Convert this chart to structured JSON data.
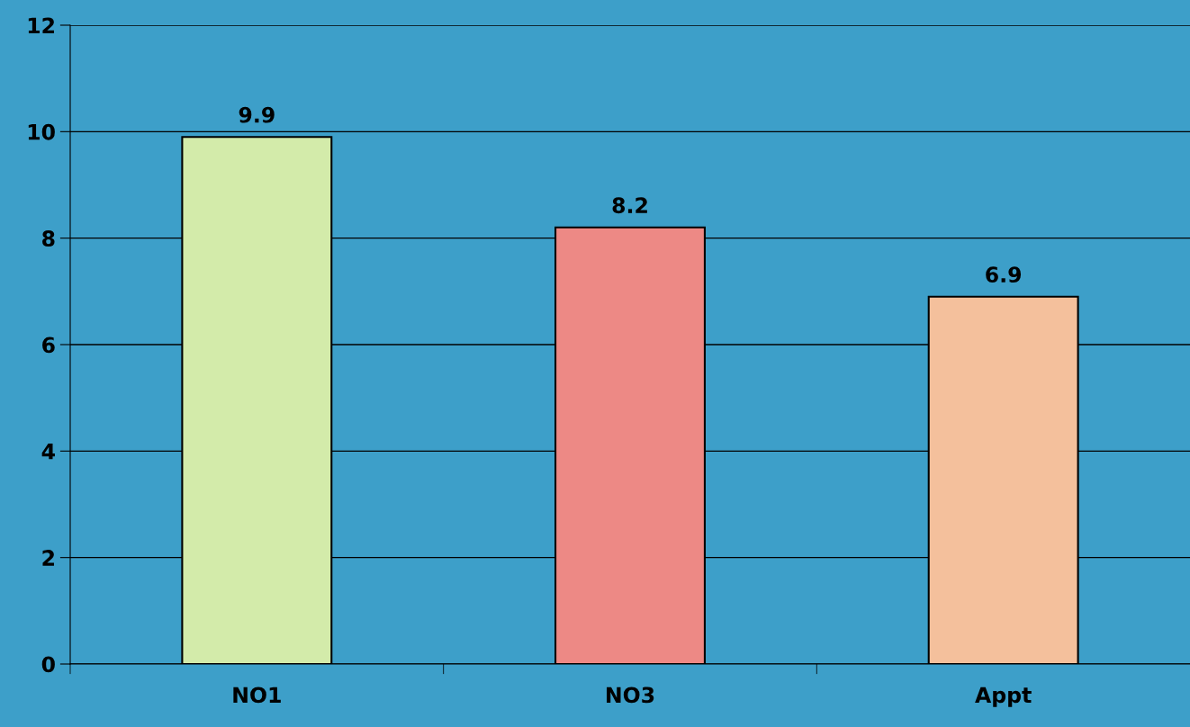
{
  "chart_data": {
    "type": "bar",
    "categories": [
      "NO1",
      "NO3",
      "Appt"
    ],
    "values": [
      9.9,
      8.2,
      6.9
    ],
    "colors": [
      "#d3ebaa",
      "#ed8985",
      "#f4c09c"
    ],
    "ylim": [
      0,
      12
    ],
    "yticks": [
      0,
      2,
      4,
      6,
      8,
      10,
      12
    ],
    "grid": "y",
    "data_labels": true
  }
}
